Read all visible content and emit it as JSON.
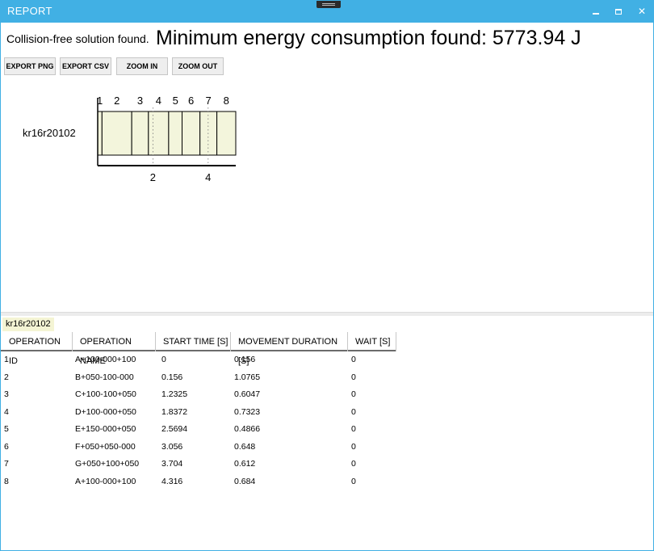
{
  "window": {
    "title": "REPORT",
    "minimize_icon": "minimize-icon",
    "maximize_icon": "maximize-icon",
    "close_label": "✕"
  },
  "header": {
    "status": "Collision-free solution found.",
    "energy": "Minimum energy consumption found: 5773.94 J"
  },
  "toolbar": {
    "export_png": "EXPORT PNG",
    "export_csv": "EXPORT CSV",
    "zoom_in": "ZOOM IN",
    "zoom_out": "ZOOM OUT"
  },
  "gantt": {
    "robot": "kr16r20102",
    "operation_labels": [
      "1",
      "2",
      "3",
      "4",
      "5",
      "6",
      "7",
      "8"
    ],
    "start_times": [
      0,
      0.156,
      1.2325,
      1.8372,
      2.5694,
      3.056,
      3.704,
      4.316
    ],
    "movement_durations": [
      0.156,
      1.0765,
      0.6047,
      0.7323,
      0.4866,
      0.648,
      0.612,
      0.684
    ],
    "time_ticks": [
      2,
      4
    ],
    "time_tick_labels": [
      "2",
      "4"
    ],
    "bar_color": "#f3f5dc"
  },
  "table": {
    "tab_label": "kr16r20102",
    "columns": [
      "OPERATION ID",
      "OPERATION NAME",
      "START TIME [S]",
      "MOVEMENT DURATION [S]",
      "WAIT [S]"
    ],
    "rows": [
      [
        "1",
        "A+100-000+100",
        "0",
        "0.156",
        "0"
      ],
      [
        "2",
        "B+050-100-000",
        "0.156",
        "1.0765",
        "0"
      ],
      [
        "3",
        "C+100-100+050",
        "1.2325",
        "0.6047",
        "0"
      ],
      [
        "4",
        "D+100-000+050",
        "1.8372",
        "0.7323",
        "0"
      ],
      [
        "5",
        "E+150-000+050",
        "2.5694",
        "0.4866",
        "0"
      ],
      [
        "6",
        "F+050+050-000",
        "3.056",
        "0.648",
        "0"
      ],
      [
        "7",
        "G+050+100+050",
        "3.704",
        "0.612",
        "0"
      ],
      [
        "8",
        "A+100-000+100",
        "4.316",
        "0.684",
        "0"
      ]
    ]
  }
}
